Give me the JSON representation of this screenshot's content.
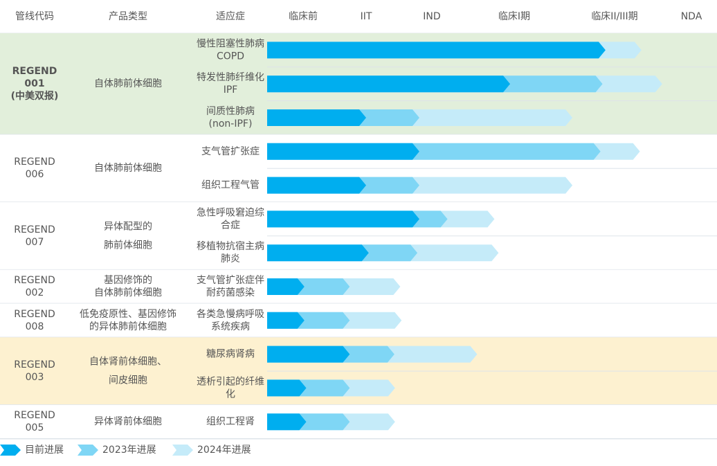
{
  "chart_data": {
    "type": "pipeline",
    "columns": [
      "管线代码",
      "产品类型",
      "适应症",
      "临床前",
      "IIT",
      "IND",
      "临床I期",
      "临床II/III期",
      "NDA"
    ],
    "programs": [
      {
        "code": [
          "REGEND",
          "001",
          "(中美双报)"
        ],
        "type": [
          "自体肺前体细胞"
        ],
        "background": "#e2efdb",
        "bold": true,
        "indications": [
          [
            "慢性阻塞性肺病",
            "COPD"
          ],
          [
            "特发性肺纤维化",
            "IPF"
          ],
          [
            "间质性肺病",
            "(non-IPF)"
          ]
        ]
      },
      {
        "code": [
          "REGEND",
          "006"
        ],
        "type": [
          "自体肺前体细胞"
        ],
        "background": "#ffffff",
        "indications": [
          [
            "支气管扩张症"
          ],
          [
            "组织工程气管"
          ]
        ]
      },
      {
        "code": [
          "REGEND",
          "007"
        ],
        "type": [
          "异体配型的",
          "肺前体细胞"
        ],
        "background": "#ffffff",
        "indications": [
          [
            "急性呼吸窘迫综",
            "合症"
          ],
          [
            "移植物抗宿主病",
            "肺炎"
          ]
        ]
      },
      {
        "code": [
          "REGEND",
          "002"
        ],
        "type": [
          "基因修饰的",
          "自体肺前体细胞"
        ],
        "background": "#ffffff",
        "indications": [
          [
            "支气管扩张症伴",
            "耐药菌感染"
          ]
        ]
      },
      {
        "code": [
          "REGEND",
          "008"
        ],
        "type": [
          "低免疫原性、基因修饰",
          "的异体肺前体细胞"
        ],
        "background": "#ffffff",
        "indications": [
          [
            "各类急慢病呼吸",
            "系统疾病"
          ]
        ]
      },
      {
        "code": [
          "REGEND",
          "003"
        ],
        "type": [
          "自体肾前体细胞、",
          "间皮细胞"
        ],
        "background": "#fdf1d0",
        "indications": [
          [
            "糖尿病肾病"
          ],
          [
            "透析引起的纤维",
            "化"
          ]
        ]
      },
      {
        "code": [
          "REGEND",
          "005"
        ],
        "type": [
          "异体肾前体细胞"
        ],
        "background": "#ffffff",
        "indications": [
          [
            "组织工程肾"
          ]
        ]
      }
    ],
    "series": [
      {
        "name": "目前进展",
        "color": "#00aeef",
        "values": [
          3.91,
          2.95,
          1,
          1.81,
          1,
          1.81,
          1.04,
          0.02,
          0.02,
          0.74,
          0.05,
          0.05
        ]
      },
      {
        "name": "2023年进展",
        "color": "#7fd6f5",
        "values": [
          null,
          3.88,
          1.81,
          3.86,
          1.81,
          2.19,
          1.78,
          0.74,
          0.74,
          1.43,
          0.74,
          0.74
        ]
      },
      {
        "name": "2024年进展",
        "color": "#c5ebf9",
        "values": [
          4.35,
          4.62,
          3.58,
          4.33,
          3.58,
          2.76,
          2.81,
          1.52,
          1.54,
          2.55,
          1.44,
          1.44
        ]
      }
    ]
  }
}
